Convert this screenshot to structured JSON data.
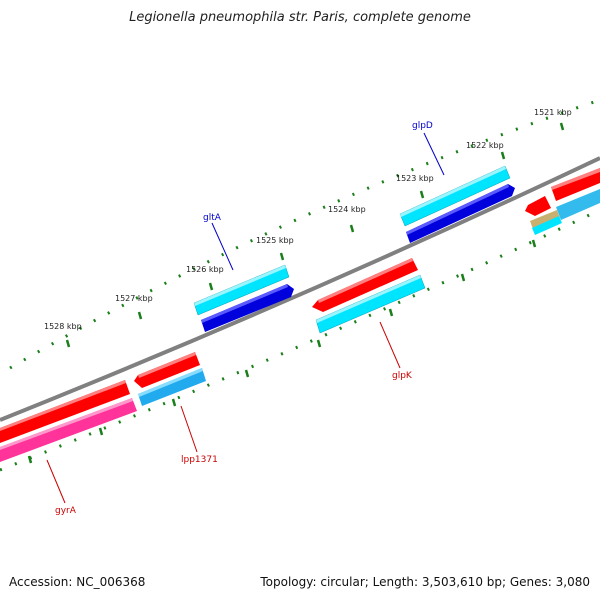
{
  "title": "Legionella pneumophila str. Paris, complete genome",
  "footer": {
    "accession": "Accession: NC_006368",
    "summary": "Topology: circular; Length: 3,503,610 bp; Genes: 3,080"
  },
  "scale_labels": [
    "1521 kbp",
    "1522 kbp",
    "1523 kbp",
    "1524 kbp",
    "1525 kbp",
    "1526 kbp",
    "1527 kbp",
    "1528 kbp"
  ],
  "gene_labels": {
    "glpD": "glpD",
    "gltA": "gltA",
    "glpK": "glpK",
    "lpp1371": "lpp1371",
    "gyrA": "gyrA"
  },
  "colors": {
    "forward_gene": "#ff0000",
    "reverse_gene": "#00e5ff",
    "cds_blue": "#0000dd",
    "rrna_pink": "#ff3399",
    "backbone": "#808080",
    "ticks": "#1a7f1a",
    "label_forward": "#0000cc",
    "label_reverse": "#cc0000"
  }
}
